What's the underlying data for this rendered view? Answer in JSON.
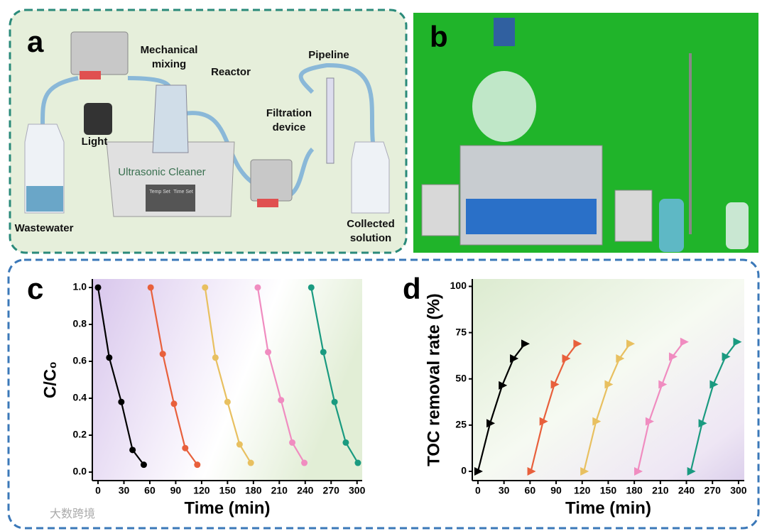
{
  "panel_a": {
    "label": "a",
    "mixing": [
      "Mechanical",
      "mixing"
    ],
    "reactor": "Reactor",
    "pipeline": "Pipeline",
    "filtration": [
      "Filtration",
      "device"
    ],
    "light": "Light",
    "cleaner": "Ultrasonic Cleaner",
    "temp_set": "Temp Set",
    "time_set": "Time Set",
    "wastewater": "Wastewater",
    "collected": [
      "Collected",
      "solution"
    ]
  },
  "panel_b": {
    "label": "b"
  },
  "watermark": "大数跨境",
  "chart_data": [
    {
      "type": "line",
      "panel_label": "c",
      "xlabel": "Time (min)",
      "ylabel": "C/C₀",
      "marker": "circle",
      "xlim": [
        -6.6,
        306
      ],
      "xticks": [
        0,
        30,
        60,
        90,
        120,
        150,
        180,
        210,
        240,
        270,
        300
      ],
      "ylim": [
        -0.046,
        1.046
      ],
      "yticks": [
        {
          "value": 0,
          "label": "0.0"
        },
        0.2,
        0.4,
        0.6,
        0.8,
        {
          "value": 1,
          "label": "1.0"
        }
      ],
      "series": [
        {
          "color": "#000000",
          "x": [
            0,
            13,
            27,
            40,
            53
          ],
          "values": [
            1.0,
            0.62,
            0.38,
            0.12,
            0.04
          ]
        },
        {
          "color": "#e8603c",
          "x": [
            61,
            75,
            88,
            101,
            115
          ],
          "values": [
            1.0,
            0.64,
            0.37,
            0.13,
            0.04
          ]
        },
        {
          "color": "#e8c060",
          "x": [
            124,
            136,
            150,
            164,
            177
          ],
          "values": [
            1.0,
            0.62,
            0.38,
            0.15,
            0.05
          ]
        },
        {
          "color": "#f08cc0",
          "x": [
            185,
            197,
            212,
            225,
            239
          ],
          "values": [
            1.0,
            0.65,
            0.39,
            0.16,
            0.05
          ]
        },
        {
          "color": "#1a9a80",
          "x": [
            247,
            261,
            274,
            287,
            301
          ],
          "values": [
            1.0,
            0.65,
            0.38,
            0.16,
            0.05
          ]
        }
      ]
    },
    {
      "type": "line",
      "panel_label": "d",
      "xlabel": "Time (min)",
      "ylabel": "TOC removal rate (%)",
      "marker": "triangle",
      "xlim": [
        -6.5,
        306.6
      ],
      "xticks": [
        0,
        30,
        60,
        90,
        120,
        150,
        180,
        210,
        240,
        270,
        300
      ],
      "ylim": [
        -5,
        104
      ],
      "yticks": [
        0,
        25,
        50,
        75,
        100
      ],
      "series": [
        {
          "color": "#000000",
          "x": [
            0,
            14,
            28,
            41,
            54
          ],
          "values": [
            0,
            26,
            46.5,
            61,
            69
          ]
        },
        {
          "color": "#e8603c",
          "x": [
            61,
            75,
            88,
            101,
            114
          ],
          "values": [
            0,
            27,
            47,
            61,
            69
          ]
        },
        {
          "color": "#e8c060",
          "x": [
            122,
            136,
            150,
            163,
            175
          ],
          "values": [
            0,
            27,
            47,
            61,
            69
          ]
        },
        {
          "color": "#f08cc0",
          "x": [
            184,
            197,
            212,
            224,
            237
          ],
          "values": [
            0,
            27,
            47,
            62,
            70
          ]
        },
        {
          "color": "#1a9a80",
          "x": [
            245,
            258,
            271,
            285,
            298
          ],
          "values": [
            0,
            26,
            47,
            62,
            70
          ]
        }
      ]
    }
  ]
}
